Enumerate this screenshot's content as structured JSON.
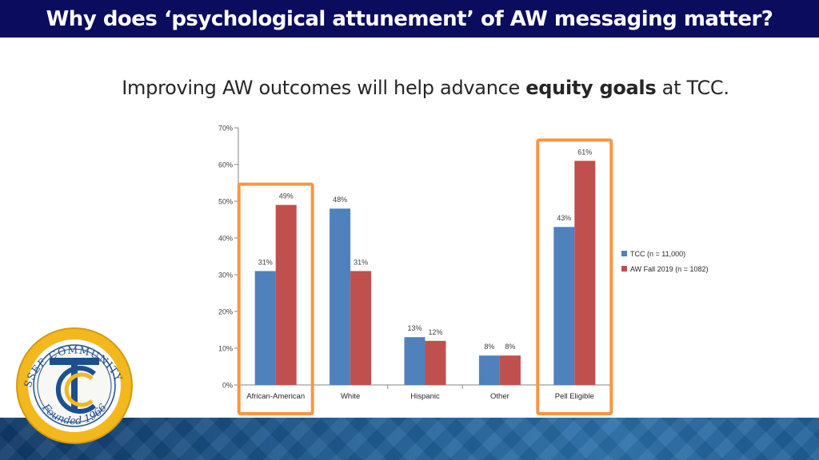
{
  "slide": {
    "title": "Why does ‘psychological attunement’ of AW messaging matter?",
    "subtitle_prefix": "Improving AW outcomes will help advance ",
    "subtitle_emphasis": "equity goals",
    "subtitle_suffix": " at TCC."
  },
  "colors": {
    "title_bar": "#0c0c5e",
    "series_tcc": "#4f81bd",
    "series_aw": "#c0504d",
    "highlight_box": "#f79646"
  },
  "logo": {
    "text_top": "TALLAHASSEE COMMUNITY COLLEGE",
    "text_bottom": "Founded 1966",
    "monogram": "TCC",
    "icon": "tcc-seal-logo"
  },
  "chart_data": {
    "type": "bar",
    "categories": [
      "African-American",
      "White",
      "Hispanic",
      "Other",
      "Pell Eligible"
    ],
    "series": [
      {
        "name": "TCC (n = 11,000)",
        "values": [
          31,
          48,
          13,
          8,
          43
        ],
        "labels": [
          "31%",
          "48%",
          "13%",
          "8%",
          "43%"
        ]
      },
      {
        "name": "AW Fall 2019 (n = 1082)",
        "values": [
          49,
          31,
          12,
          8,
          61
        ],
        "labels": [
          "49%",
          "31%",
          "12%",
          "8%",
          "61%"
        ]
      }
    ],
    "ylim": [
      0,
      70
    ],
    "yticks": [
      0,
      10,
      20,
      30,
      40,
      50,
      60,
      70
    ],
    "ytick_labels": [
      "0%",
      "10%",
      "20%",
      "30%",
      "40%",
      "50%",
      "60%",
      "70%"
    ],
    "legend_position": "right",
    "grid": false,
    "highlighted_categories": [
      "African-American",
      "Pell Eligible"
    ]
  }
}
